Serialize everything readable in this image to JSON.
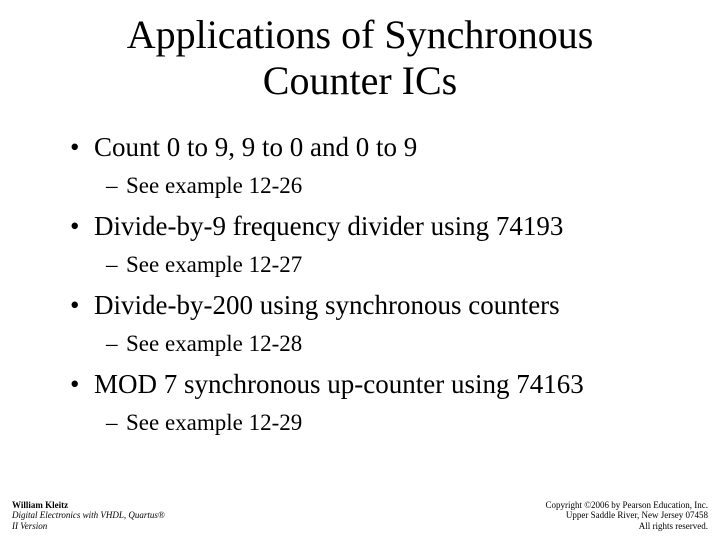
{
  "title_line1": "Applications of Synchronous",
  "title_line2": "Counter ICs",
  "bullets": [
    {
      "text": "Count 0 to 9, 9 to 0 and 0 to 9",
      "sub": "See example 12-26"
    },
    {
      "text": "Divide-by-9 frequency divider using 74193",
      "sub": "See example 12-27"
    },
    {
      "text": "Divide-by-200 using synchronous counters",
      "sub": "See example 12-28"
    },
    {
      "text": "MOD 7 synchronous up-counter using 74163",
      "sub": "See example 12-29"
    }
  ],
  "footer_left": {
    "author": "William Kleitz",
    "book": "Digital Electronics with VHDL, Quartus®",
    "version": "II Version"
  },
  "footer_right": {
    "copyright": "Copyright ©2006 by Pearson Education, Inc.",
    "address": "Upper Saddle River, New Jersey 07458",
    "rights": "All rights reserved."
  },
  "colors": {
    "background": "#ffffff",
    "text": "#000000"
  },
  "typography": {
    "title_fontsize": 40,
    "bullet_l1_fontsize": 27,
    "bullet_l2_fontsize": 23,
    "footer_fontsize": 9,
    "font_family": "Times New Roman"
  }
}
